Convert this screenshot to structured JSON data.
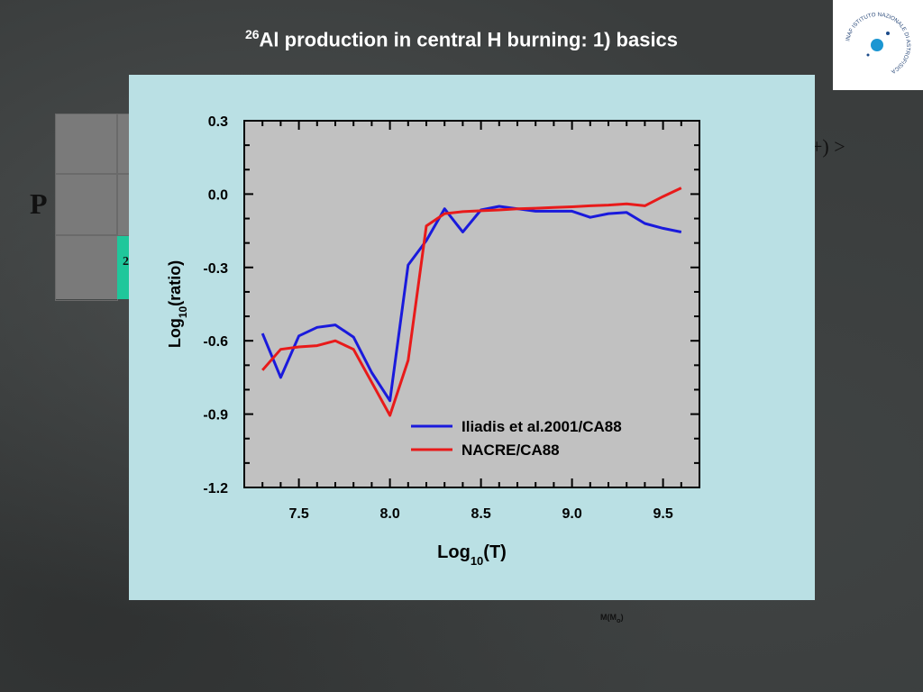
{
  "slide": {
    "title_sup": "26",
    "title_main": "Al production in central H burning:  1) basics",
    "logo_text": "INAF ISTITUTO NAZIONALE DI ASTROFISICA"
  },
  "background_fragments": {
    "left_letter": "P",
    "table_cell_text": "2",
    "right_text": "+) >",
    "xaxis_label": "M(M",
    "xaxis_sub": "o",
    "xaxis_close": ")"
  },
  "colors": {
    "panel_bg": "#bae0e4",
    "plot_bg": "#c1c1c1",
    "iliadis": "#1a1adc",
    "nacre": "#e81a1a"
  },
  "chart_data": {
    "type": "line",
    "title": "",
    "xlabel_main": "Log",
    "xlabel_sub": "10",
    "xlabel_tail": "(T)",
    "ylabel_main": "Log",
    "ylabel_sub": "10",
    "ylabel_tail": "(ratio)",
    "xlim": [
      7.2,
      9.7
    ],
    "ylim": [
      -1.2,
      0.3
    ],
    "xticks": [
      7.5,
      8.0,
      8.5,
      9.0,
      9.5
    ],
    "xtick_labels": [
      "7.5",
      "8.0",
      "8.5",
      "9.0",
      "9.5"
    ],
    "yticks": [
      0.3,
      0.0,
      -0.3,
      -0.6,
      -0.9,
      -1.2
    ],
    "ytick_labels": [
      "0.3",
      "0.0",
      "-0.3",
      "-0.6",
      "-0.9",
      "-1.2"
    ],
    "grid": false,
    "legend_position": "bottom-right",
    "series": [
      {
        "name": "Iliadis et al.2001/CA88",
        "color": "#1a1adc",
        "x": [
          7.3,
          7.4,
          7.5,
          7.6,
          7.7,
          7.8,
          7.9,
          8.0,
          8.1,
          8.2,
          8.3,
          8.4,
          8.5,
          8.6,
          8.7,
          8.8,
          8.9,
          9.0,
          9.1,
          9.2,
          9.3,
          9.4,
          9.5,
          9.6
        ],
        "y": [
          -0.57,
          -0.75,
          -0.58,
          -0.545,
          -0.535,
          -0.585,
          -0.73,
          -0.845,
          -0.29,
          -0.19,
          -0.06,
          -0.155,
          -0.065,
          -0.05,
          -0.06,
          -0.07,
          -0.07,
          -0.07,
          -0.095,
          -0.08,
          -0.075,
          -0.12,
          -0.14,
          -0.155
        ]
      },
      {
        "name": "NACRE/CA88",
        "color": "#e81a1a",
        "x": [
          7.3,
          7.4,
          7.5,
          7.6,
          7.7,
          7.8,
          7.9,
          8.0,
          8.1,
          8.2,
          8.3,
          8.4,
          8.5,
          8.6,
          8.7,
          8.8,
          8.9,
          9.0,
          9.1,
          9.2,
          9.3,
          9.4,
          9.5,
          9.6
        ],
        "y": [
          -0.72,
          -0.635,
          -0.625,
          -0.62,
          -0.6,
          -0.635,
          -0.77,
          -0.905,
          -0.68,
          -0.13,
          -0.08,
          -0.072,
          -0.068,
          -0.065,
          -0.06,
          -0.058,
          -0.055,
          -0.052,
          -0.048,
          -0.045,
          -0.04,
          -0.048,
          -0.01,
          0.025
        ]
      }
    ]
  }
}
